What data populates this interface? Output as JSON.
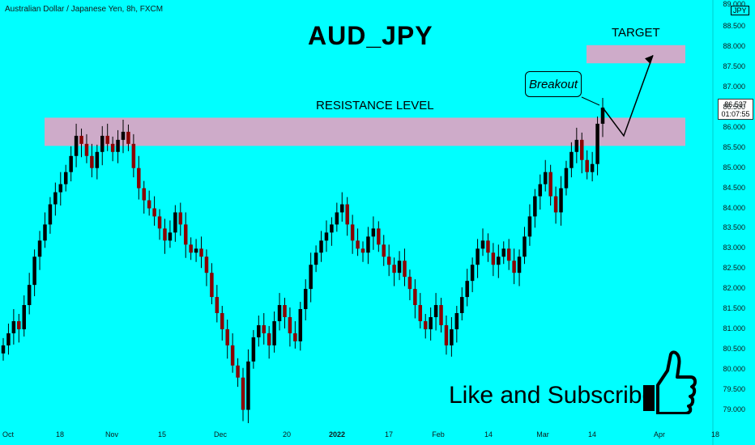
{
  "header": {
    "symbol_info": "Australian Dollar / Japanese Yen, 8h, FXCM",
    "currency_badge": "JPY"
  },
  "annotations": {
    "title": "AUD_JPY",
    "resistance_label": "RESISTANCE LEVEL",
    "target_label": "TARGET",
    "breakout_label": "Breakout",
    "cta": "Like and Subscribe"
  },
  "price_tag": {
    "price": "86.537",
    "countdown": "01:07:55"
  },
  "colors": {
    "background": "#00ffff",
    "zone": "#d9a6c6",
    "bull_candle": "#000000",
    "bear_candle": "#8b0000"
  },
  "icons": {
    "thumbs_up": "thumbs-up-icon"
  },
  "chart_data": {
    "type": "candlestick",
    "title": "AUD_JPY",
    "timeframe": "8h",
    "x_ticks": [
      "Oct",
      "18",
      "Nov",
      "15",
      "Dec",
      "20",
      "2022",
      "17",
      "Feb",
      "14",
      "Mar",
      "14",
      "Apr",
      "18"
    ],
    "y_ticks": [
      "89.000",
      "88.500",
      "88.000",
      "87.500",
      "87.000",
      "86.500",
      "86.000",
      "85.500",
      "85.000",
      "84.500",
      "84.000",
      "83.500",
      "83.000",
      "82.500",
      "82.000",
      "81.500",
      "81.000",
      "80.500",
      "80.000",
      "79.500",
      "79.000"
    ],
    "ylim": [
      78.85,
      89.05
    ],
    "close_series": [
      80.6,
      80.9,
      81.2,
      81.0,
      81.6,
      82.1,
      82.8,
      83.2,
      83.6,
      84.1,
      84.4,
      84.6,
      84.9,
      85.3,
      85.8,
      85.6,
      85.3,
      85.0,
      85.4,
      85.8,
      85.6,
      85.4,
      85.7,
      85.9,
      85.6,
      85.0,
      84.5,
      84.2,
      84.0,
      83.8,
      83.5,
      83.2,
      83.4,
      83.9,
      83.6,
      83.1,
      82.9,
      83.0,
      82.8,
      82.4,
      81.8,
      81.4,
      81.0,
      80.6,
      80.1,
      79.8,
      79.0,
      80.2,
      80.8,
      81.1,
      80.9,
      80.6,
      81.2,
      81.6,
      81.3,
      80.9,
      80.7,
      81.5,
      82.0,
      82.6,
      82.9,
      83.2,
      83.4,
      83.6,
      83.9,
      84.1,
      83.6,
      83.2,
      83.0,
      82.9,
      83.3,
      83.5,
      83.1,
      82.8,
      82.6,
      82.4,
      82.7,
      82.3,
      82.0,
      81.6,
      81.2,
      81.0,
      81.3,
      81.6,
      81.1,
      80.6,
      81.0,
      81.4,
      81.8,
      82.2,
      82.6,
      83.0,
      83.2,
      82.9,
      82.6,
      82.8,
      83.0,
      82.7,
      82.4,
      82.8,
      83.3,
      83.8,
      84.3,
      84.6,
      84.9,
      84.3,
      83.9,
      84.5,
      85.0,
      85.4,
      85.7,
      85.2,
      84.9,
      85.1,
      86.1,
      86.5
    ],
    "resistance_zone": [
      85.55,
      86.25
    ],
    "target_zone": [
      87.6,
      88.05
    ],
    "last_price": 86.537,
    "projection": [
      86.5,
      85.8,
      87.8
    ],
    "grid": false,
    "legend": "none"
  }
}
